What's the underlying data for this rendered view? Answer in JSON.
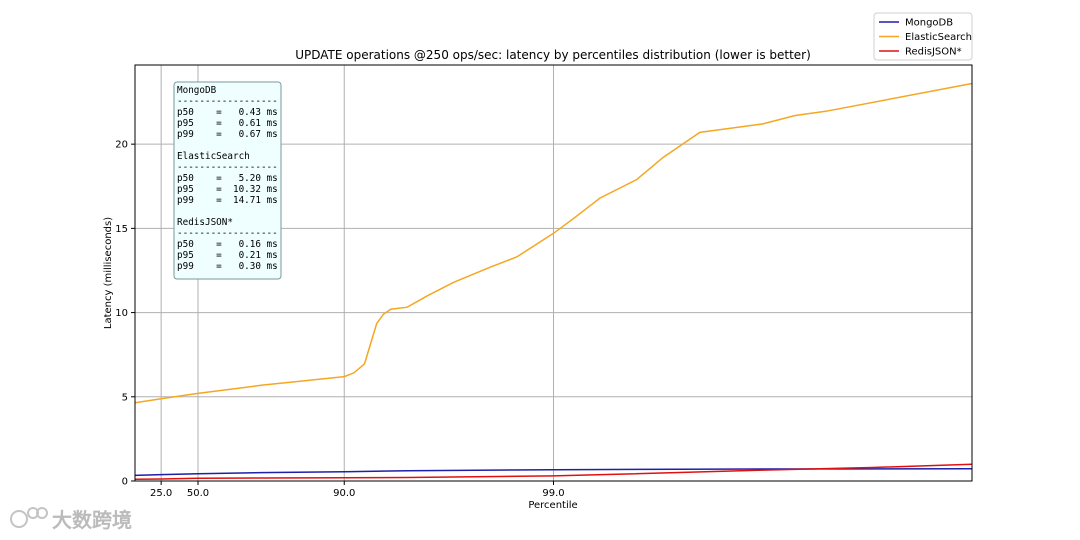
{
  "chart_data": {
    "type": "line",
    "title": "UPDATE operations @250 ops/sec: latency by percentiles distribution (lower is better)",
    "xlabel": "Percentile",
    "ylabel": "Latency (milliseconds)",
    "x_tick_labels": [
      "25.0",
      "50.0",
      "90.0",
      "99.0"
    ],
    "y_ticks": [
      0,
      5,
      10,
      15,
      20
    ],
    "ylim": [
      0,
      24.7
    ],
    "grid": true,
    "legend_position": "top-right",
    "series": [
      {
        "name": "MongoDB",
        "color": "#1f1fa8",
        "points": [
          [
            0,
            0.33
          ],
          [
            25,
            0.38
          ],
          [
            50,
            0.43
          ],
          [
            75,
            0.5
          ],
          [
            90,
            0.55
          ],
          [
            95,
            0.61
          ],
          [
            99,
            0.67
          ],
          [
            99.9,
            0.71
          ],
          [
            99.99,
            0.73
          ]
        ]
      },
      {
        "name": "ElasticSearch",
        "color": "#f5a623",
        "points": [
          [
            0,
            4.65
          ],
          [
            25,
            4.88
          ],
          [
            50,
            5.2
          ],
          [
            75,
            5.68
          ],
          [
            90,
            6.2
          ],
          [
            91,
            6.42
          ],
          [
            92,
            6.95
          ],
          [
            93,
            9.35
          ],
          [
            93.5,
            9.9
          ],
          [
            94,
            10.2
          ],
          [
            95,
            10.32
          ],
          [
            96,
            11.0
          ],
          [
            97,
            11.8
          ],
          [
            98,
            12.7
          ],
          [
            98.5,
            13.3
          ],
          [
            99,
            14.71
          ],
          [
            99.2,
            15.6
          ],
          [
            99.4,
            16.8
          ],
          [
            99.6,
            17.9
          ],
          [
            99.7,
            19.2
          ],
          [
            99.8,
            20.7
          ],
          [
            99.9,
            21.2
          ],
          [
            99.93,
            21.7
          ],
          [
            99.95,
            21.95
          ],
          [
            99.99,
            23.6
          ]
        ]
      },
      {
        "name": "RedisJSON*",
        "color": "#e01010",
        "points": [
          [
            0,
            0.1
          ],
          [
            25,
            0.12
          ],
          [
            50,
            0.16
          ],
          [
            75,
            0.18
          ],
          [
            90,
            0.19
          ],
          [
            95,
            0.21
          ],
          [
            99,
            0.3
          ],
          [
            99.5,
            0.4
          ],
          [
            99.9,
            0.65
          ],
          [
            99.97,
            0.8
          ],
          [
            99.99,
            1.0
          ]
        ]
      }
    ],
    "stats_box": {
      "separator": "------------------",
      "groups": [
        {
          "name": "MongoDB",
          "rows": [
            "p50    =   0.43 ms",
            "p95    =   0.61 ms",
            "p99    =   0.67 ms"
          ]
        },
        {
          "name": "ElasticSearch",
          "rows": [
            "p50    =   5.20 ms",
            "p95    =  10.32 ms",
            "p99    =  14.71 ms"
          ]
        },
        {
          "name": "RedisJSON*",
          "rows": [
            "p50    =   0.16 ms",
            "p95    =   0.21 ms",
            "p99    =   0.30 ms"
          ]
        }
      ]
    }
  },
  "watermark": "大数跨境"
}
